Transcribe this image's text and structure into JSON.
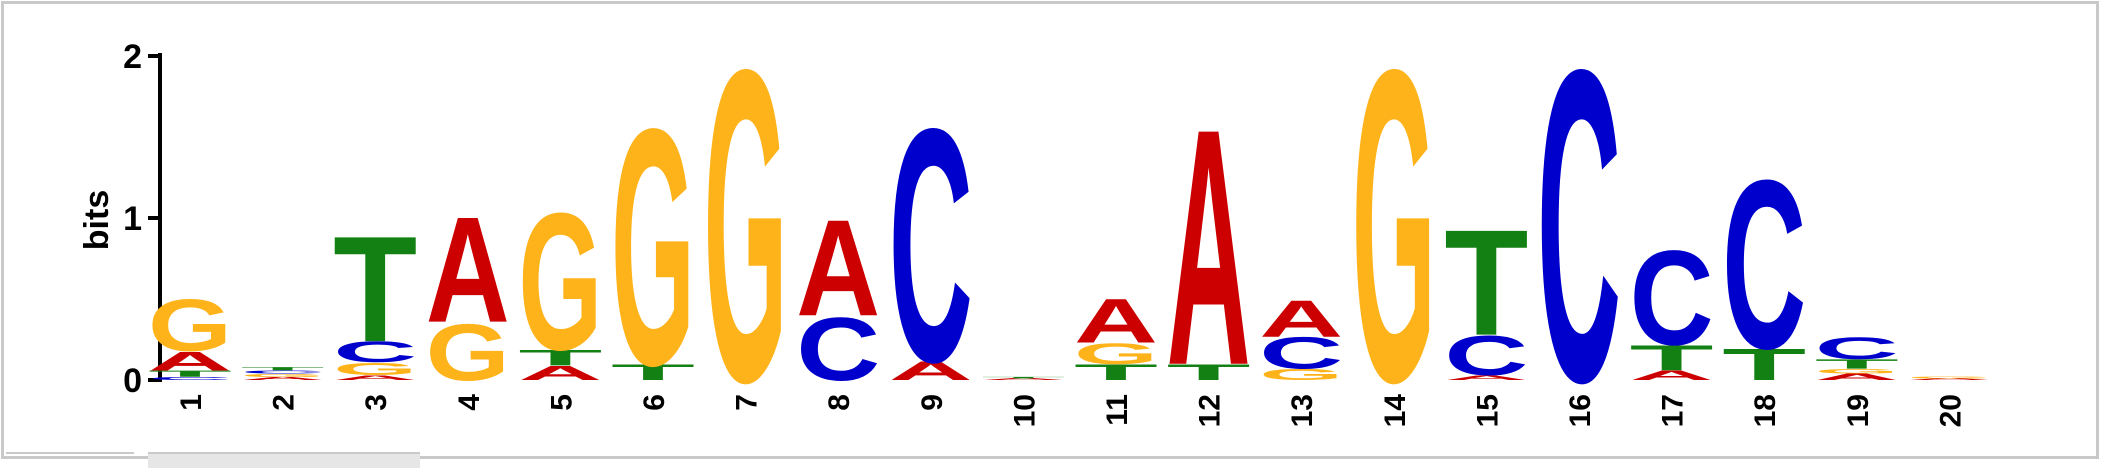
{
  "chart_data": {
    "type": "sequence-logo",
    "ylabel": "bits",
    "ylim": [
      0,
      2
    ],
    "yticks": [
      "0",
      "1",
      "2"
    ],
    "colors": {
      "A": "#cc0000",
      "C": "#0000cc",
      "G": "#ffb31a",
      "T": "#138013"
    },
    "positions": [
      {
        "label": "1",
        "stack": [
          [
            "C",
            0.02
          ],
          [
            "T",
            0.04
          ],
          [
            "A",
            0.12
          ],
          [
            "G",
            0.33
          ]
        ]
      },
      {
        "label": "2",
        "stack": [
          [
            "A",
            0.02
          ],
          [
            "G",
            0.02
          ],
          [
            "C",
            0.02
          ],
          [
            "T",
            0.02
          ]
        ]
      },
      {
        "label": "3",
        "stack": [
          [
            "A",
            0.03
          ],
          [
            "G",
            0.08
          ],
          [
            "C",
            0.13
          ],
          [
            "T",
            0.67
          ]
        ]
      },
      {
        "label": "4",
        "stack": [
          [
            "G",
            0.36
          ],
          [
            "A",
            0.67
          ]
        ]
      },
      {
        "label": "5",
        "stack": [
          [
            "A",
            0.09
          ],
          [
            "T",
            0.1
          ],
          [
            "G",
            0.87
          ]
        ]
      },
      {
        "label": "6",
        "stack": [
          [
            "T",
            0.1
          ],
          [
            "G",
            1.5
          ]
        ]
      },
      {
        "label": "7",
        "stack": [
          [
            "G",
            1.98
          ]
        ]
      },
      {
        "label": "8",
        "stack": [
          [
            "C",
            0.4
          ],
          [
            "A",
            0.61
          ]
        ]
      },
      {
        "label": "9",
        "stack": [
          [
            "A",
            0.12
          ],
          [
            "C",
            1.48
          ]
        ]
      },
      {
        "label": "10",
        "stack": [
          [
            "A",
            0.01
          ],
          [
            "T",
            0.01
          ]
        ]
      },
      {
        "label": "11",
        "stack": [
          [
            "T",
            0.1
          ],
          [
            "G",
            0.13
          ],
          [
            "A",
            0.28
          ]
        ]
      },
      {
        "label": "12",
        "stack": [
          [
            "T",
            0.1
          ],
          [
            "A",
            1.5
          ]
        ]
      },
      {
        "label": "13",
        "stack": [
          [
            "G",
            0.07
          ],
          [
            "C",
            0.2
          ],
          [
            "A",
            0.23
          ]
        ]
      },
      {
        "label": "14",
        "stack": [
          [
            "G",
            1.98
          ]
        ]
      },
      {
        "label": "15",
        "stack": [
          [
            "A",
            0.03
          ],
          [
            "C",
            0.25
          ],
          [
            "T",
            0.67
          ]
        ]
      },
      {
        "label": "16",
        "stack": [
          [
            "C",
            1.98
          ]
        ]
      },
      {
        "label": "17",
        "stack": [
          [
            "A",
            0.06
          ],
          [
            "T",
            0.16
          ],
          [
            "C",
            0.6
          ]
        ]
      },
      {
        "label": "18",
        "stack": [
          [
            "T",
            0.2
          ],
          [
            "C",
            1.07
          ]
        ]
      },
      {
        "label": "19",
        "stack": [
          [
            "A",
            0.04
          ],
          [
            "G",
            0.03
          ],
          [
            "T",
            0.06
          ],
          [
            "C",
            0.14
          ]
        ]
      },
      {
        "label": "20",
        "stack": [
          [
            "A",
            0.01
          ],
          [
            "G",
            0.01
          ]
        ]
      }
    ]
  }
}
